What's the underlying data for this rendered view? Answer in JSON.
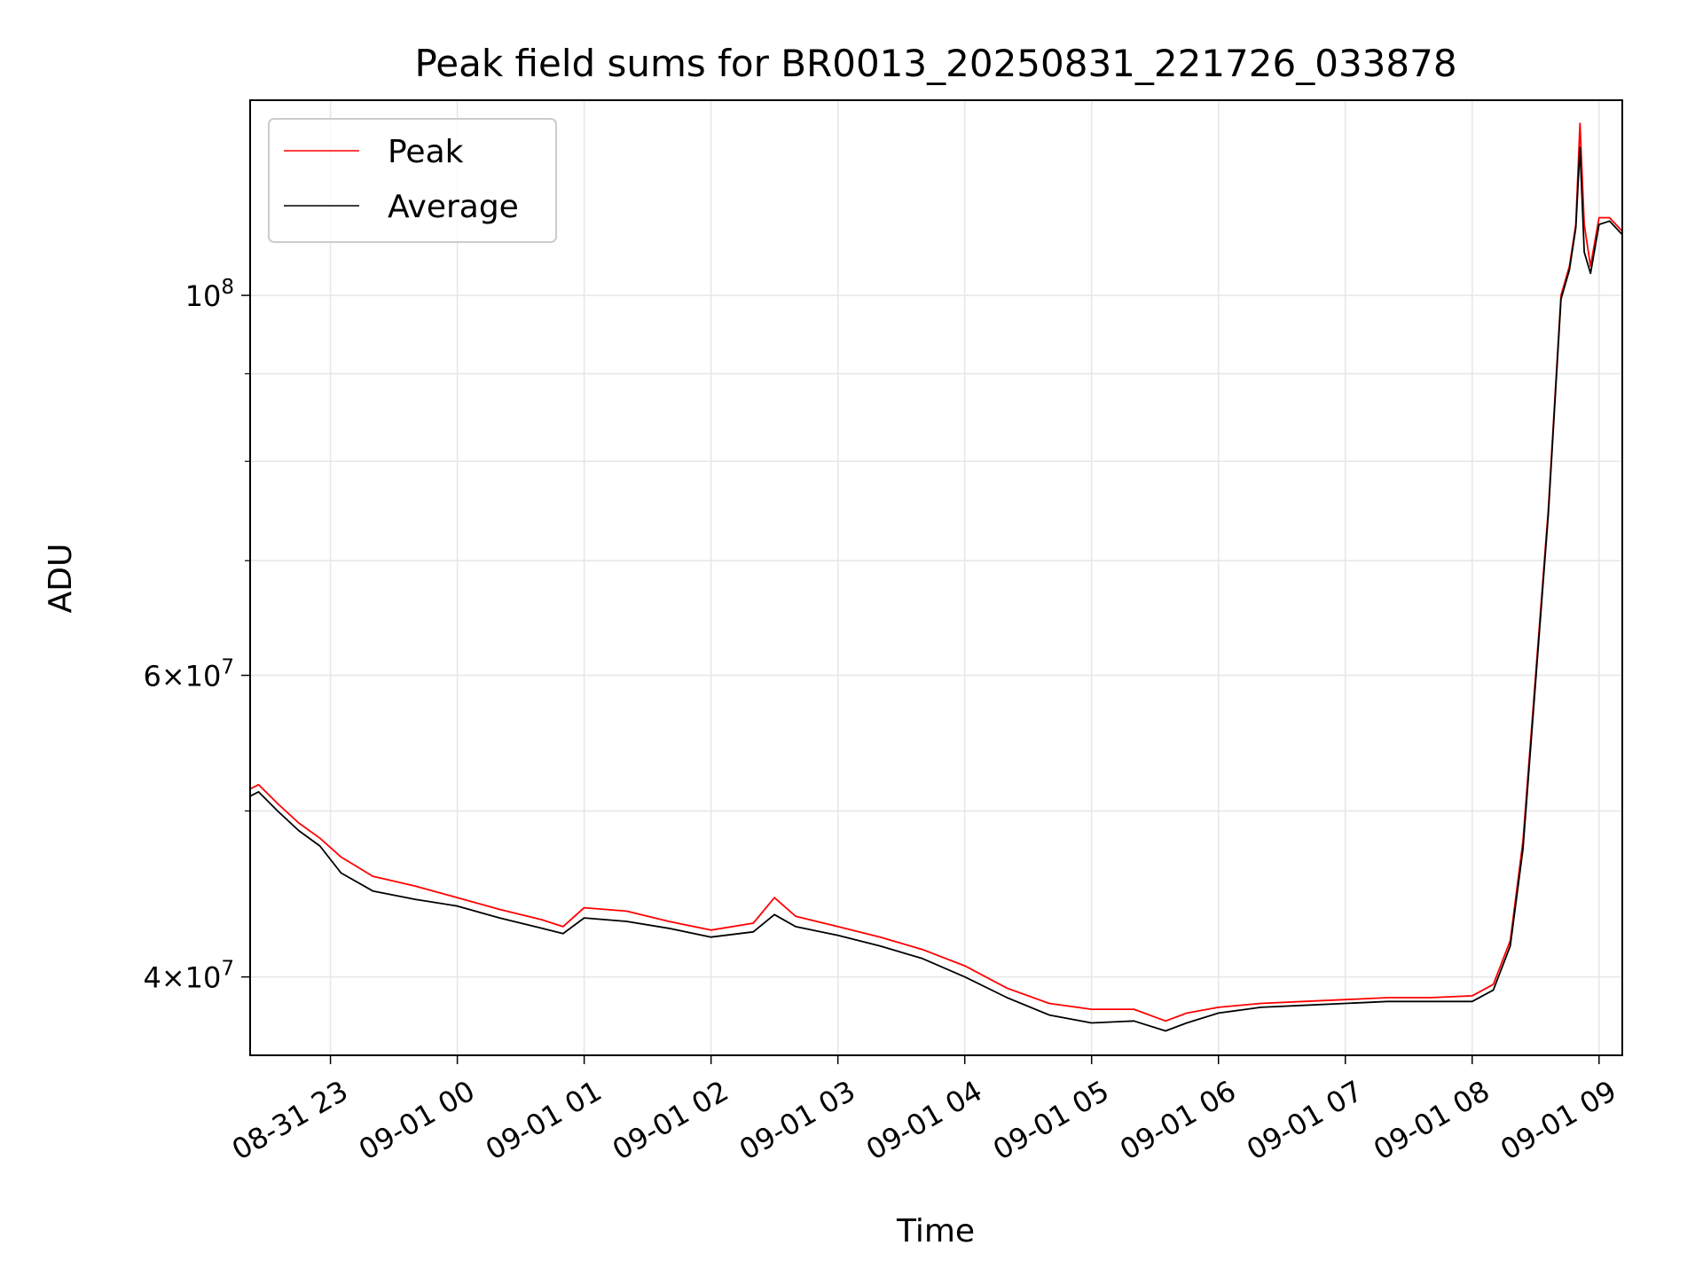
{
  "chart_data": {
    "type": "line",
    "title": "Peak field sums for BR0013_20250831_221726_033878",
    "xlabel": "Time",
    "ylabel": "ADU",
    "yscale": "log",
    "ylim": [
      36000000,
      130000000
    ],
    "xlim": [
      "2025-08-31 22:22",
      "2025-09-01 09:11"
    ],
    "grid": true,
    "legend_position": "top-left",
    "x_ticks": [
      {
        "value": "2025-08-31 23:00",
        "label": "08-31 23"
      },
      {
        "value": "2025-09-01 00:00",
        "label": "09-01 00"
      },
      {
        "value": "2025-09-01 01:00",
        "label": "09-01 01"
      },
      {
        "value": "2025-09-01 02:00",
        "label": "09-01 02"
      },
      {
        "value": "2025-09-01 03:00",
        "label": "09-01 03"
      },
      {
        "value": "2025-09-01 04:00",
        "label": "09-01 04"
      },
      {
        "value": "2025-09-01 05:00",
        "label": "09-01 05"
      },
      {
        "value": "2025-09-01 06:00",
        "label": "09-01 06"
      },
      {
        "value": "2025-09-01 07:00",
        "label": "09-01 07"
      },
      {
        "value": "2025-09-01 08:00",
        "label": "09-01 08"
      },
      {
        "value": "2025-09-01 09:00",
        "label": "09-01 09"
      }
    ],
    "y_ticks_major": [
      {
        "value": 40000000,
        "coef": "4",
        "exp": "7"
      },
      {
        "value": 60000000,
        "coef": "6",
        "exp": "7"
      },
      {
        "value": 100000000,
        "coef": "",
        "exp": "8"
      }
    ],
    "y_ticks_minor": [
      50000000,
      70000000,
      80000000,
      90000000
    ],
    "series": [
      {
        "name": "Peak",
        "color": "#ff0000",
        "x": [
          "2025-08-31 22:22",
          "2025-08-31 22:26",
          "2025-08-31 22:35",
          "2025-08-31 22:45",
          "2025-08-31 22:55",
          "2025-08-31 23:05",
          "2025-08-31 23:20",
          "2025-08-31 23:40",
          "2025-09-01 00:00",
          "2025-09-01 00:20",
          "2025-09-01 00:40",
          "2025-09-01 00:50",
          "2025-09-01 01:00",
          "2025-09-01 01:20",
          "2025-09-01 01:40",
          "2025-09-01 02:00",
          "2025-09-01 02:20",
          "2025-09-01 02:30",
          "2025-09-01 02:40",
          "2025-09-01 03:00",
          "2025-09-01 03:20",
          "2025-09-01 03:40",
          "2025-09-01 04:00",
          "2025-09-01 04:20",
          "2025-09-01 04:40",
          "2025-09-01 05:00",
          "2025-09-01 05:20",
          "2025-09-01 05:35",
          "2025-09-01 05:45",
          "2025-09-01 06:00",
          "2025-09-01 06:20",
          "2025-09-01 06:40",
          "2025-09-01 07:00",
          "2025-09-01 07:20",
          "2025-09-01 07:40",
          "2025-09-01 08:00",
          "2025-09-01 08:10",
          "2025-09-01 08:18",
          "2025-09-01 08:24",
          "2025-09-01 08:30",
          "2025-09-01 08:36",
          "2025-09-01 08:42",
          "2025-09-01 08:46",
          "2025-09-01 08:49",
          "2025-09-01 08:51",
          "2025-09-01 08:53",
          "2025-09-01 08:56",
          "2025-09-01 09:00",
          "2025-09-01 09:05",
          "2025-09-01 09:11"
        ],
        "values": [
          51500000,
          51800000,
          50500000,
          49200000,
          48200000,
          47000000,
          45800000,
          45200000,
          44500000,
          43800000,
          43200000,
          42800000,
          43900000,
          43700000,
          43100000,
          42600000,
          43000000,
          44500000,
          43400000,
          42800000,
          42200000,
          41500000,
          40600000,
          39400000,
          38600000,
          38300000,
          38300000,
          37700000,
          38100000,
          38400000,
          38600000,
          38700000,
          38800000,
          38900000,
          38900000,
          39000000,
          39600000,
          42000000,
          48000000,
          60000000,
          75000000,
          100000000,
          104000000,
          110000000,
          126000000,
          110000000,
          104000000,
          111000000,
          111000000,
          109000000
        ]
      },
      {
        "name": "Average",
        "color": "#000000",
        "x": [
          "2025-08-31 22:22",
          "2025-08-31 22:26",
          "2025-08-31 22:35",
          "2025-08-31 22:45",
          "2025-08-31 22:55",
          "2025-08-31 23:05",
          "2025-08-31 23:20",
          "2025-08-31 23:40",
          "2025-09-01 00:00",
          "2025-09-01 00:20",
          "2025-09-01 00:40",
          "2025-09-01 00:50",
          "2025-09-01 01:00",
          "2025-09-01 01:20",
          "2025-09-01 01:40",
          "2025-09-01 02:00",
          "2025-09-01 02:20",
          "2025-09-01 02:30",
          "2025-09-01 02:40",
          "2025-09-01 03:00",
          "2025-09-01 03:20",
          "2025-09-01 03:40",
          "2025-09-01 04:00",
          "2025-09-01 04:20",
          "2025-09-01 04:40",
          "2025-09-01 05:00",
          "2025-09-01 05:20",
          "2025-09-01 05:35",
          "2025-09-01 05:45",
          "2025-09-01 06:00",
          "2025-09-01 06:20",
          "2025-09-01 06:40",
          "2025-09-01 07:00",
          "2025-09-01 07:20",
          "2025-09-01 07:40",
          "2025-09-01 08:00",
          "2025-09-01 08:10",
          "2025-09-01 08:18",
          "2025-09-01 08:24",
          "2025-09-01 08:30",
          "2025-09-01 08:36",
          "2025-09-01 08:42",
          "2025-09-01 08:46",
          "2025-09-01 08:49",
          "2025-09-01 08:51",
          "2025-09-01 08:53",
          "2025-09-01 08:56",
          "2025-09-01 09:00",
          "2025-09-01 09:05",
          "2025-09-01 09:11"
        ],
        "values": [
          51000000,
          51300000,
          50000000,
          48700000,
          47700000,
          46000000,
          44900000,
          44400000,
          44000000,
          43300000,
          42700000,
          42400000,
          43300000,
          43100000,
          42700000,
          42200000,
          42500000,
          43500000,
          42800000,
          42300000,
          41700000,
          41000000,
          40000000,
          38900000,
          38000000,
          37600000,
          37700000,
          37200000,
          37600000,
          38100000,
          38400000,
          38500000,
          38600000,
          38700000,
          38700000,
          38700000,
          39300000,
          41700000,
          47500000,
          59500000,
          74500000,
          99500000,
          103500000,
          109500000,
          122000000,
          106000000,
          103000000,
          110000000,
          110500000,
          108500000
        ]
      }
    ]
  }
}
